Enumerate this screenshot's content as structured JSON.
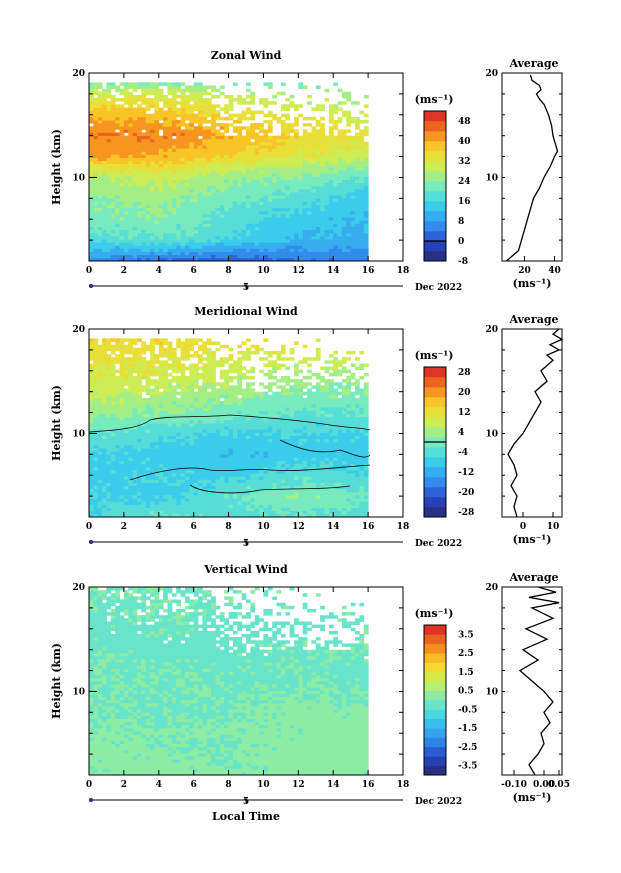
{
  "chart_data": [
    {
      "type": "heatmap",
      "title": "Zonal Wind",
      "ylabel": "Height (km)",
      "xlim": [
        0,
        18
      ],
      "ylim": [
        2,
        20
      ],
      "x_ticks": [
        "0",
        "2",
        "4",
        "6",
        "8",
        "10",
        "12",
        "14",
        "16",
        "18"
      ],
      "y_ticks": [
        "20",
        "10"
      ],
      "date_label": "Dec 2022",
      "day_label": "5",
      "colorbar": {
        "unit": "(ms⁻¹)",
        "min": -8,
        "max": 52,
        "step": 4,
        "ticks": [
          "48",
          "40",
          "32",
          "24",
          "16",
          "8",
          "0",
          "-8"
        ],
        "contour_at": 0
      },
      "data_extent": {
        "x": [
          0,
          16
        ],
        "y": [
          2,
          19
        ]
      },
      "field": {
        "heights": [
          2,
          4,
          6,
          8,
          10,
          12,
          14,
          16,
          18,
          19
        ],
        "columns": [
          {
            "x": 0,
            "u": [
              6,
              18,
              22,
              24,
              28,
              42,
              44,
              38,
              30,
              22
            ]
          },
          {
            "x": 4,
            "u": [
              4,
              20,
              24,
              26,
              30,
              40,
              44,
              38,
              30,
              22
            ]
          },
          {
            "x": 8,
            "u": [
              2,
              16,
              18,
              22,
              26,
              36,
              40,
              34,
              28,
              22
            ]
          },
          {
            "x": 12,
            "u": [
              4,
              12,
              14,
              18,
              24,
              32,
              36,
              32,
              26,
              22
            ]
          },
          {
            "x": 16,
            "u": [
              6,
              10,
              12,
              14,
              20,
              30,
              32,
              30,
              24,
              22
            ]
          }
        ]
      },
      "average_profile": {
        "title": "Average",
        "xlabel": "(ms⁻¹)",
        "x_ticks": [
          "20",
          "40"
        ],
        "y_ticks": [
          "20",
          "10"
        ],
        "xlim": [
          5,
          45
        ],
        "points": [
          [
            8,
            2
          ],
          [
            12,
            2.5
          ],
          [
            16,
            3
          ],
          [
            18,
            4
          ],
          [
            20,
            5
          ],
          [
            22,
            6
          ],
          [
            24,
            7
          ],
          [
            26,
            8
          ],
          [
            30,
            9
          ],
          [
            33,
            10
          ],
          [
            37,
            11
          ],
          [
            40,
            12
          ],
          [
            42,
            12.5
          ],
          [
            41,
            13
          ],
          [
            40,
            13.5
          ],
          [
            39,
            14
          ],
          [
            38,
            15
          ],
          [
            36,
            16
          ],
          [
            33,
            17
          ],
          [
            30,
            17.5
          ],
          [
            28,
            18
          ],
          [
            31,
            18.4
          ],
          [
            30,
            18.8
          ],
          [
            25,
            19.3
          ],
          [
            24,
            19.8
          ]
        ]
      }
    },
    {
      "type": "heatmap",
      "title": "Meridional Wind",
      "ylabel": "Height (km)",
      "xlim": [
        0,
        18
      ],
      "ylim": [
        2,
        20
      ],
      "x_ticks": [
        "0",
        "2",
        "4",
        "6",
        "8",
        "10",
        "12",
        "14",
        "16",
        "18"
      ],
      "y_ticks": [
        "20",
        "10"
      ],
      "date_label": "Dec 2022",
      "day_label": "5",
      "colorbar": {
        "unit": "(ms⁻¹)",
        "min": -30,
        "max": 30,
        "step": 4,
        "ticks": [
          "28",
          "20",
          "12",
          "4",
          "-4",
          "-12",
          "-20",
          "-28"
        ],
        "contour_at": 0
      },
      "data_extent": {
        "x": [
          0,
          16
        ],
        "y": [
          2,
          19
        ]
      },
      "field": {
        "heights": [
          2,
          4,
          6,
          8,
          10,
          12,
          14,
          16,
          18,
          19
        ],
        "columns": [
          {
            "x": 0,
            "v": [
              -6,
              -6,
              -8,
              -6,
              -2,
              4,
              8,
              10,
              12,
              14
            ]
          },
          {
            "x": 4,
            "v": [
              -2,
              -8,
              -6,
              -8,
              -4,
              2,
              6,
              10,
              12,
              14
            ]
          },
          {
            "x": 8,
            "v": [
              -4,
              -2,
              -8,
              -10,
              -6,
              0,
              4,
              8,
              10,
              12
            ]
          },
          {
            "x": 12,
            "v": [
              -2,
              2,
              -4,
              -8,
              -6,
              -2,
              2,
              6,
              10,
              10
            ]
          },
          {
            "x": 16,
            "v": [
              -4,
              -2,
              -6,
              -8,
              -6,
              -2,
              2,
              4,
              8,
              8
            ]
          }
        ]
      },
      "average_profile": {
        "title": "Average",
        "xlabel": "(ms⁻¹)",
        "x_ticks": [
          "0",
          "10"
        ],
        "y_ticks": [
          "20",
          "10"
        ],
        "xlim": [
          -7,
          13
        ],
        "points": [
          [
            -2,
            2
          ],
          [
            -3,
            3
          ],
          [
            -2,
            4
          ],
          [
            -4,
            5
          ],
          [
            -2,
            6
          ],
          [
            -3,
            7
          ],
          [
            -5,
            8
          ],
          [
            -3,
            9
          ],
          [
            0,
            10
          ],
          [
            2,
            11
          ],
          [
            4,
            12
          ],
          [
            6,
            13
          ],
          [
            4,
            14
          ],
          [
            8,
            15
          ],
          [
            6,
            16
          ],
          [
            10,
            17
          ],
          [
            8,
            17.5
          ],
          [
            12,
            18
          ],
          [
            9,
            18.5
          ],
          [
            13,
            19
          ],
          [
            10,
            19.5
          ],
          [
            12,
            20
          ]
        ]
      }
    },
    {
      "type": "heatmap",
      "title": "Vertical Wind",
      "ylabel": "Height (km)",
      "xlabel": "Local Time",
      "xlim": [
        0,
        18
      ],
      "ylim": [
        2,
        20
      ],
      "x_ticks": [
        "0",
        "2",
        "4",
        "6",
        "8",
        "10",
        "12",
        "14",
        "16",
        "18"
      ],
      "y_ticks": [
        "20",
        "10"
      ],
      "date_label": "Dec 2022",
      "day_label": "5",
      "colorbar": {
        "unit": "(ms⁻¹)",
        "min": -4,
        "max": 4,
        "step": 0.5,
        "ticks": [
          "3.5",
          "2.5",
          "1.5",
          "0.5",
          "-0.5",
          "-1.5",
          "-2.5",
          "-3.5"
        ]
      },
      "data_extent": {
        "x": [
          0,
          16
        ],
        "y": [
          2,
          20
        ]
      },
      "field": {
        "heights": [
          2,
          4,
          6,
          8,
          10,
          12,
          14,
          16,
          18,
          20
        ],
        "columns": [
          {
            "x": 0,
            "w": [
              0.1,
              0.2,
              0.1,
              0.0,
              -0.1,
              0.0,
              -0.1,
              -0.2,
              -0.1,
              0.0
            ]
          },
          {
            "x": 4,
            "w": [
              0.2,
              0.1,
              0.0,
              -0.1,
              0.0,
              -0.1,
              -0.2,
              -0.1,
              0.0,
              -0.1
            ]
          },
          {
            "x": 8,
            "w": [
              0.1,
              0.0,
              0.1,
              0.0,
              -0.1,
              -0.1,
              -0.2,
              -0.2,
              -0.1,
              0.0
            ]
          },
          {
            "x": 12,
            "w": [
              0.2,
              0.3,
              0.1,
              0.2,
              0.0,
              -0.1,
              -0.1,
              -0.2,
              -0.1,
              -0.1
            ]
          },
          {
            "x": 16,
            "w": [
              0.1,
              0.2,
              0.3,
              0.1,
              0.0,
              -0.2,
              -0.1,
              -0.1,
              0.0,
              0.0
            ]
          }
        ]
      },
      "average_profile": {
        "title": "Average",
        "xlabel": "(ms⁻¹)",
        "x_ticks": [
          "-0.10",
          "0.00",
          "0.05"
        ],
        "y_ticks": [
          "20",
          "10"
        ],
        "xlim": [
          -0.14,
          0.06
        ],
        "points": [
          [
            -0.03,
            2
          ],
          [
            -0.05,
            3
          ],
          [
            -0.02,
            4
          ],
          [
            0.0,
            5
          ],
          [
            -0.01,
            6
          ],
          [
            0.02,
            7
          ],
          [
            0.0,
            8
          ],
          [
            0.03,
            9
          ],
          [
            0.0,
            10
          ],
          [
            -0.04,
            11
          ],
          [
            -0.08,
            12
          ],
          [
            -0.02,
            13
          ],
          [
            -0.07,
            14
          ],
          [
            0.01,
            15
          ],
          [
            -0.06,
            16
          ],
          [
            0.03,
            17
          ],
          [
            -0.04,
            18
          ],
          [
            0.05,
            18.5
          ],
          [
            -0.05,
            19
          ],
          [
            0.04,
            19.5
          ],
          [
            -0.02,
            20
          ]
        ]
      }
    }
  ]
}
